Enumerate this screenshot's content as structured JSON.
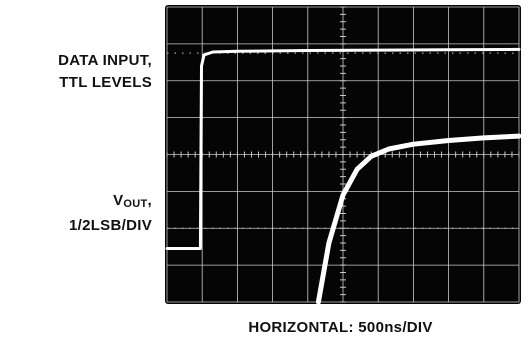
{
  "labels": {
    "data_input_line1": "DATA INPUT,",
    "data_input_line2": "TTL LEVELS",
    "vout_main": "V",
    "vout_sub": "OUT",
    "vout_comma": ",",
    "vout_line2": "1/2LSB/DIV",
    "horizontal": "HORIZONTAL: 500ns/DIV"
  },
  "colors": {
    "screen": "#050505",
    "grid": "#c8c8c8",
    "trace": "#ffffff"
  },
  "chart_data": {
    "type": "line",
    "grid": {
      "x_divisions": 10,
      "y_divisions": 8,
      "minor_ticks_per_division": 5
    },
    "series": [
      {
        "x": [
          0,
          0.95,
          0.98,
          1.05,
          1.3,
          2,
          4,
          6,
          8,
          10
        ],
        "y": [
          1.45,
          1.45,
          6.4,
          6.7,
          6.78,
          6.8,
          6.82,
          6.83,
          6.84,
          6.85
        ]
      },
      {
        "x": [
          4.3,
          4.6,
          5.0,
          5.4,
          5.8,
          6.3,
          7.0,
          8.0,
          9.0,
          10
        ],
        "y": [
          0,
          1.6,
          2.9,
          3.6,
          3.95,
          4.15,
          4.28,
          4.38,
          4.45,
          4.5
        ]
      }
    ]
  }
}
